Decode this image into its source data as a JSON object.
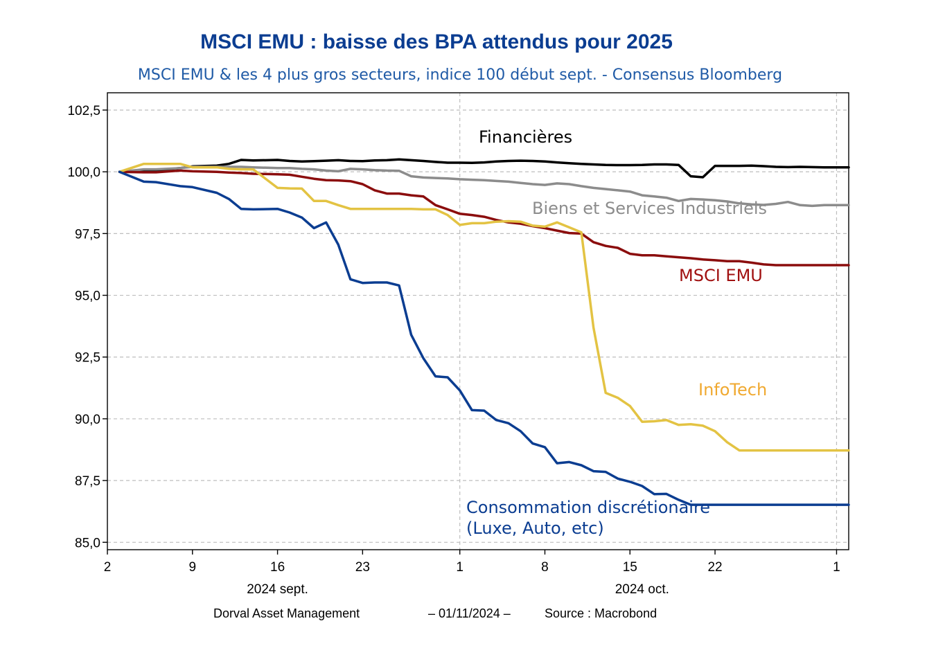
{
  "chart_data": {
    "type": "line",
    "title": "MSCI EMU : baisse des BPA attendus pour 2025",
    "subtitle": "MSCI EMU & les 4 plus gros secteurs, indice 100 début sept. - Consensus Bloomberg",
    "footer": {
      "author": "Dorval Asset Management",
      "date": "– 01/11/2024 –",
      "source": "Source : Macrobond"
    },
    "ylim": [
      84.7,
      103.2
    ],
    "xlim": [
      0,
      61
    ],
    "y_ticks": [
      85.0,
      87.5,
      90.0,
      92.5,
      95.0,
      97.5,
      100.0,
      102.5
    ],
    "y_tick_labels": [
      "85,0",
      "87,5",
      "90,0",
      "92,5",
      "95,0",
      "97,5",
      "100,0",
      "102,5"
    ],
    "x_ticks": [
      0,
      7,
      14,
      21,
      29,
      36,
      43,
      50,
      60
    ],
    "x_tick_labels": [
      "2",
      "9",
      "16",
      "23",
      "1",
      "8",
      "15",
      "22",
      "1"
    ],
    "x_month_labels": [
      {
        "x": 14,
        "label": "2024 sept."
      },
      {
        "x": 44,
        "label": "2024 oct."
      }
    ],
    "x_vgrid": [
      29,
      60
    ],
    "x": [
      1,
      3,
      4,
      6,
      7,
      9,
      10,
      11,
      12,
      14,
      15,
      16,
      17,
      18,
      19,
      20,
      21,
      22,
      23,
      24,
      25,
      26,
      27,
      28,
      29,
      30,
      31,
      32,
      33,
      34,
      35,
      36,
      37,
      38,
      39,
      40,
      41,
      42,
      43,
      44,
      45,
      46,
      47,
      48,
      49,
      50,
      51,
      52,
      53,
      54,
      55,
      56,
      57,
      58,
      59,
      60,
      61
    ],
    "series": [
      {
        "name": "Financières",
        "color": "#000000",
        "values": [
          100.0,
          100.02,
          100.05,
          100.15,
          100.22,
          100.25,
          100.32,
          100.48,
          100.46,
          100.48,
          100.44,
          100.42,
          100.43,
          100.45,
          100.47,
          100.44,
          100.43,
          100.46,
          100.47,
          100.5,
          100.47,
          100.44,
          100.4,
          100.37,
          100.37,
          100.36,
          100.38,
          100.42,
          100.44,
          100.45,
          100.44,
          100.42,
          100.38,
          100.35,
          100.32,
          100.3,
          100.28,
          100.27,
          100.27,
          100.28,
          100.3,
          100.3,
          100.28,
          99.82,
          99.78,
          100.24,
          100.24,
          100.24,
          100.25,
          100.23,
          100.2,
          100.19,
          100.2,
          100.19,
          100.18,
          100.18,
          100.18
        ]
      },
      {
        "name": "Biens et Services Industriels",
        "color": "#8c8c8c",
        "values": [
          100.0,
          100.1,
          100.1,
          100.15,
          100.2,
          100.2,
          100.2,
          100.2,
          100.18,
          100.15,
          100.15,
          100.12,
          100.1,
          100.05,
          100.02,
          100.12,
          100.1,
          100.07,
          100.05,
          100.04,
          99.82,
          99.77,
          99.75,
          99.73,
          99.7,
          99.68,
          99.66,
          99.63,
          99.6,
          99.55,
          99.5,
          99.47,
          99.53,
          99.5,
          99.42,
          99.35,
          99.3,
          99.25,
          99.2,
          99.05,
          99.0,
          98.95,
          98.82,
          98.9,
          98.88,
          98.85,
          98.8,
          98.72,
          98.68,
          98.66,
          98.7,
          98.78,
          98.65,
          98.62,
          98.65,
          98.65,
          98.65
        ]
      },
      {
        "name": "MSCI EMU",
        "color": "#8b0d0d",
        "values": [
          100.0,
          99.98,
          99.98,
          100.05,
          100.02,
          100.0,
          99.97,
          99.95,
          99.92,
          99.9,
          99.88,
          99.8,
          99.72,
          99.66,
          99.65,
          99.62,
          99.5,
          99.25,
          99.12,
          99.12,
          99.05,
          99.0,
          98.65,
          98.48,
          98.3,
          98.25,
          98.18,
          98.05,
          97.95,
          97.9,
          97.8,
          97.72,
          97.62,
          97.52,
          97.5,
          97.15,
          97.0,
          96.92,
          96.68,
          96.62,
          96.62,
          96.58,
          96.54,
          96.5,
          96.45,
          96.42,
          96.38,
          96.38,
          96.32,
          96.25,
          96.22,
          96.22,
          96.22,
          96.22,
          96.22,
          96.22,
          96.22
        ]
      },
      {
        "name": "InfoTech",
        "color": "#e3c343",
        "values": [
          100.0,
          100.32,
          100.32,
          100.32,
          100.18,
          100.18,
          100.12,
          100.1,
          100.1,
          99.35,
          99.33,
          99.32,
          98.82,
          98.82,
          98.65,
          98.5,
          98.5,
          98.5,
          98.5,
          98.5,
          98.5,
          98.48,
          98.48,
          98.25,
          97.85,
          97.92,
          97.92,
          97.98,
          98.0,
          97.98,
          97.82,
          97.78,
          97.95,
          97.75,
          97.55,
          93.7,
          91.05,
          90.85,
          90.52,
          89.88,
          89.9,
          89.95,
          89.75,
          89.78,
          89.72,
          89.5,
          89.05,
          88.72,
          88.72,
          88.72,
          88.72,
          88.72,
          88.72,
          88.72,
          88.72,
          88.72,
          88.72
        ]
      },
      {
        "name": "Consommation discrétionaire",
        "color": "#0b3d91",
        "values": [
          100.0,
          99.6,
          99.58,
          99.42,
          99.38,
          99.15,
          98.9,
          98.5,
          98.48,
          98.5,
          98.35,
          98.15,
          97.72,
          97.95,
          97.05,
          95.65,
          95.5,
          95.52,
          95.52,
          95.4,
          93.4,
          92.45,
          91.72,
          91.68,
          91.15,
          90.35,
          90.33,
          89.95,
          89.82,
          89.5,
          89.0,
          88.85,
          88.2,
          88.25,
          88.12,
          87.88,
          87.85,
          87.58,
          87.45,
          87.28,
          86.95,
          86.96,
          86.72,
          86.52,
          86.52,
          86.52,
          86.52,
          86.52,
          86.52,
          86.52,
          86.52,
          86.52,
          86.52,
          86.52,
          86.52,
          86.52,
          86.52
        ]
      }
    ],
    "series_length_used": [
      57,
      57,
      57,
      57,
      57
    ],
    "labels": [
      {
        "series": "Financières",
        "lines": [
          "Financières"
        ]
      },
      {
        "series": "Biens et Services Industriels",
        "lines": [
          "Biens et Services Industriels"
        ]
      },
      {
        "series": "MSCI EMU",
        "lines": [
          "MSCI EMU"
        ]
      },
      {
        "series": "InfoTech",
        "lines": [
          "InfoTech"
        ]
      },
      {
        "series": "Consommation discrétionaire",
        "lines": [
          "Consommation discrétionaire",
          "(Luxe, Auto, etc)"
        ]
      }
    ],
    "label_colors": {
      "Financières": "#000000",
      "Biens et Services Industriels": "#8c8c8c",
      "MSCI EMU": "#a01010",
      "InfoTech": "#f0a930",
      "Consommation discrétionaire": "#0b3d91"
    },
    "grid": true
  }
}
